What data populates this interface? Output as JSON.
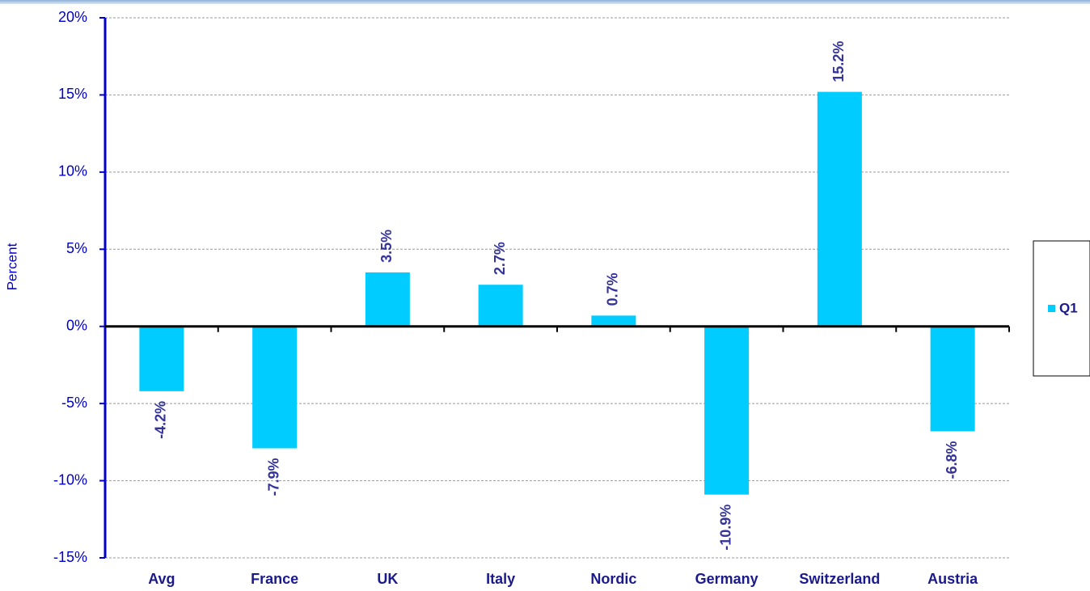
{
  "chart_data": {
    "type": "bar",
    "y_label": "Percent",
    "categories": [
      "Avg",
      "France",
      "UK",
      "Italy",
      "Nordic",
      "Germany",
      "Switzerland",
      "Austria"
    ],
    "series": [
      {
        "name": "Q1",
        "color": "#00ccff",
        "values": [
          -4.2,
          -7.9,
          3.5,
          2.7,
          0.7,
          -10.9,
          15.2,
          -6.8
        ],
        "value_labels": [
          "-4.2%",
          "-7.9%",
          "3.5%",
          "2.7%",
          "0.7%",
          "-10.9%",
          "15.2%",
          "-6.8%"
        ]
      }
    ],
    "ylim": [
      -15,
      20
    ],
    "yticks": [
      {
        "value": -15,
        "label": "-15%"
      },
      {
        "value": -10,
        "label": "-10%"
      },
      {
        "value": -5,
        "label": "-5%"
      },
      {
        "value": 0,
        "label": "0%"
      },
      {
        "value": 5,
        "label": "5%"
      },
      {
        "value": 10,
        "label": "10%"
      },
      {
        "value": 15,
        "label": "15%"
      },
      {
        "value": 20,
        "label": "20%"
      }
    ],
    "grid": true
  }
}
